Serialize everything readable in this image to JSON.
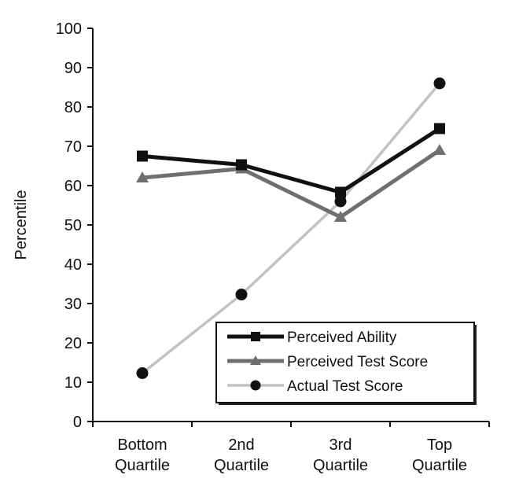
{
  "chart_data": {
    "type": "line",
    "categories": [
      [
        "Bottom",
        "Quartile"
      ],
      [
        "2nd",
        "Quartile"
      ],
      [
        "3rd",
        "Quartile"
      ],
      [
        "Top",
        "Quartile"
      ]
    ],
    "ylabel": "Percentile",
    "ylim": [
      0,
      100
    ],
    "yticks": [
      0,
      10,
      20,
      30,
      40,
      50,
      60,
      70,
      80,
      90,
      100
    ],
    "grid": false,
    "legend_position": "bottom-right",
    "series": [
      {
        "name": "Perceived Ability",
        "values": [
          67.5,
          65.3,
          58.3,
          74.5
        ],
        "marker": "square",
        "color": "#111111"
      },
      {
        "name": "Perceived Test Score",
        "values": [
          62.0,
          64.3,
          52.0,
          69.0
        ],
        "marker": "triangle",
        "color": "#6f6f6f"
      },
      {
        "name": "Actual Test Score",
        "values": [
          12.3,
          32.3,
          56.0,
          86.0
        ],
        "marker": "circle",
        "color": "#c2c2c2"
      }
    ]
  }
}
